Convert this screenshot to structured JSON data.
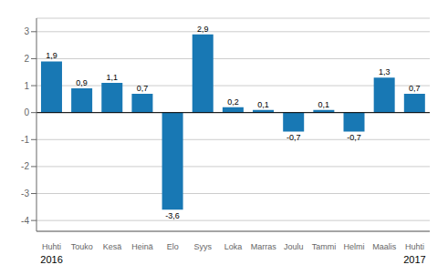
{
  "chart_data": {
    "type": "bar",
    "categories": [
      "Huhti",
      "Touko",
      "Kesä",
      "Heinä",
      "Elo",
      "Syys",
      "Loka",
      "Marras",
      "Joulu",
      "Tammi",
      "Helmi",
      "Maalis",
      "Huhti"
    ],
    "values": [
      1.9,
      0.9,
      1.1,
      0.7,
      -3.6,
      2.9,
      0.2,
      0.1,
      -0.7,
      0.1,
      -0.7,
      1.3,
      0.7
    ],
    "value_labels": [
      "1,9",
      "0,9",
      "1,1",
      "0,7",
      "-3,6",
      "2,9",
      "0,2",
      "0,1",
      "-0,7",
      "0,1",
      "-0,7",
      "1,3",
      "0,7"
    ],
    "data_labels": true,
    "color": "#1878b4",
    "ylim": [
      -4.4,
      3.5
    ],
    "yticks": [
      -4,
      -3,
      -2,
      -1,
      0,
      1,
      2,
      3
    ],
    "grid": true,
    "annotations": [
      {
        "text": "2016",
        "x": 0
      },
      {
        "text": "2017",
        "x": 12
      }
    ]
  }
}
